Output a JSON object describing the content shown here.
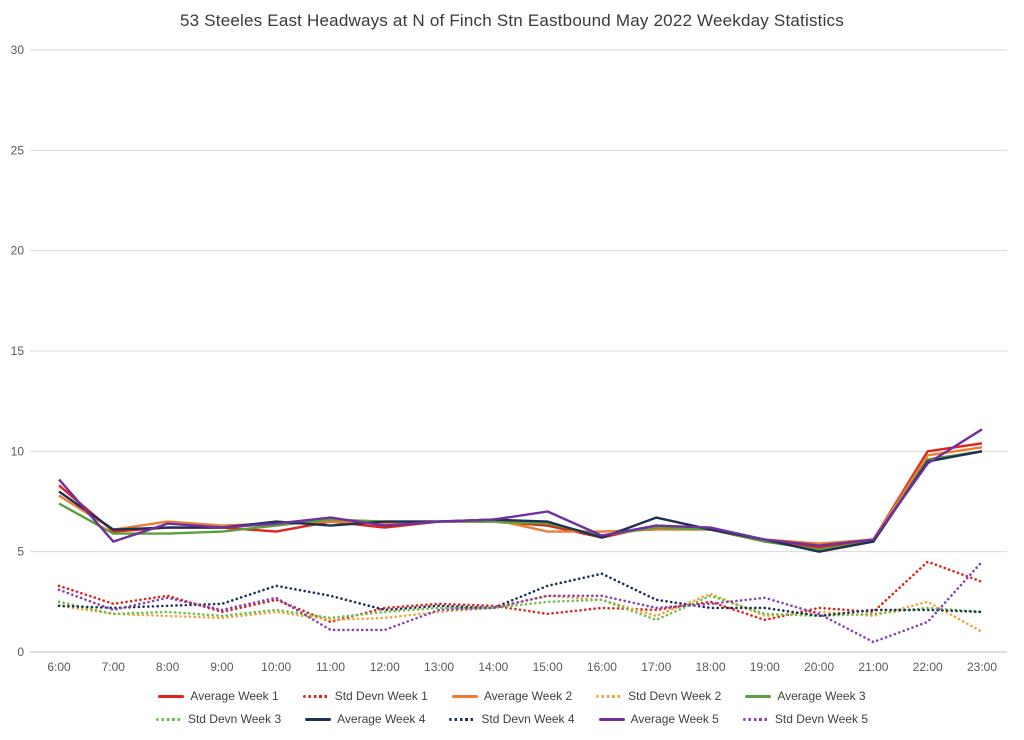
{
  "title": "53 Steeles East Headways at N of Finch Stn Eastbound May 2022 Weekday Statistics",
  "chart_data": {
    "type": "line",
    "title": "53 Steeles East Headways at N of Finch Stn Eastbound May 2022 Weekday Statistics",
    "xlabel": "",
    "ylabel": "",
    "ylim": [
      0,
      30
    ],
    "yticks": [
      0,
      5,
      10,
      15,
      20,
      25,
      30
    ],
    "grid": true,
    "legend_position": "bottom",
    "x": [
      "6:00",
      "7:00",
      "8:00",
      "9:00",
      "10:00",
      "11:00",
      "12:00",
      "13:00",
      "14:00",
      "15:00",
      "16:00",
      "17:00",
      "18:00",
      "19:00",
      "20:00",
      "21:00",
      "22:00",
      "23:00"
    ],
    "series": [
      {
        "name": "Average Week 1",
        "color": "#e2231a",
        "style": "solid",
        "values": [
          8.3,
          6.0,
          6.2,
          6.2,
          6.0,
          6.5,
          6.2,
          6.5,
          6.5,
          6.3,
          5.7,
          6.3,
          6.1,
          5.5,
          5.2,
          5.6,
          10.0,
          10.4
        ]
      },
      {
        "name": "Std Devn Week 1",
        "color": "#e2231a",
        "style": "dotted",
        "values": [
          3.3,
          2.4,
          2.8,
          2.0,
          2.6,
          1.5,
          2.2,
          2.4,
          2.3,
          1.9,
          2.2,
          2.1,
          2.5,
          1.6,
          2.2,
          2.0,
          4.5,
          3.5
        ]
      },
      {
        "name": "Average Week 2",
        "color": "#ed7d31",
        "style": "solid",
        "values": [
          7.8,
          6.1,
          6.5,
          6.3,
          6.4,
          6.5,
          6.4,
          6.5,
          6.6,
          6.0,
          6.0,
          6.1,
          6.1,
          5.6,
          5.4,
          5.6,
          9.8,
          10.2
        ]
      },
      {
        "name": "Std Devn Week 2",
        "color": "#f2a33c",
        "style": "dotted",
        "values": [
          2.3,
          1.9,
          1.8,
          1.7,
          2.0,
          1.6,
          1.7,
          2.0,
          2.2,
          2.8,
          2.6,
          1.8,
          2.9,
          1.8,
          2.0,
          1.8,
          2.5,
          1.0
        ]
      },
      {
        "name": "Average Week 3",
        "color": "#5aa03c",
        "style": "solid",
        "values": [
          7.4,
          5.9,
          5.9,
          6.0,
          6.3,
          6.6,
          6.5,
          6.5,
          6.5,
          6.4,
          5.8,
          6.2,
          6.1,
          5.5,
          5.1,
          5.5,
          9.6,
          10.0
        ]
      },
      {
        "name": "Std Devn Week 3",
        "color": "#6cbf4a",
        "style": "dotted",
        "values": [
          2.5,
          1.9,
          2.0,
          1.8,
          2.1,
          1.7,
          2.0,
          2.2,
          2.2,
          2.5,
          2.6,
          1.6,
          2.8,
          1.9,
          1.8,
          1.9,
          2.2,
          2.0
        ]
      },
      {
        "name": "Average Week 4",
        "color": "#1f3057",
        "style": "solid",
        "values": [
          8.0,
          6.1,
          6.2,
          6.2,
          6.5,
          6.3,
          6.5,
          6.5,
          6.6,
          6.5,
          5.7,
          6.7,
          6.1,
          5.6,
          5.0,
          5.5,
          9.5,
          10.0
        ]
      },
      {
        "name": "Std Devn Week 4",
        "color": "#1f3057",
        "style": "dotted",
        "values": [
          2.3,
          2.2,
          2.3,
          2.4,
          3.3,
          2.8,
          2.1,
          2.3,
          2.2,
          3.3,
          3.9,
          2.6,
          2.2,
          2.2,
          1.8,
          2.1,
          2.1,
          2.0
        ]
      },
      {
        "name": "Average Week 5",
        "color": "#7030a0",
        "style": "solid",
        "values": [
          8.6,
          5.5,
          6.4,
          6.2,
          6.4,
          6.7,
          6.3,
          6.5,
          6.6,
          7.0,
          5.8,
          6.3,
          6.2,
          5.6,
          5.3,
          5.6,
          9.4,
          11.1
        ]
      },
      {
        "name": "Std Devn Week 5",
        "color": "#8444b4",
        "style": "dotted",
        "values": [
          3.1,
          2.1,
          2.7,
          2.1,
          2.7,
          1.1,
          1.1,
          2.1,
          2.2,
          2.8,
          2.8,
          2.2,
          2.4,
          2.7,
          1.9,
          0.5,
          1.5,
          4.5
        ]
      }
    ],
    "colors": {
      "gridline": "#d9d9d9",
      "axis_line": "#bfbfbf",
      "tick_label": "#595959",
      "title_text": "#3a3a3a",
      "legend_text": "#404040"
    }
  }
}
